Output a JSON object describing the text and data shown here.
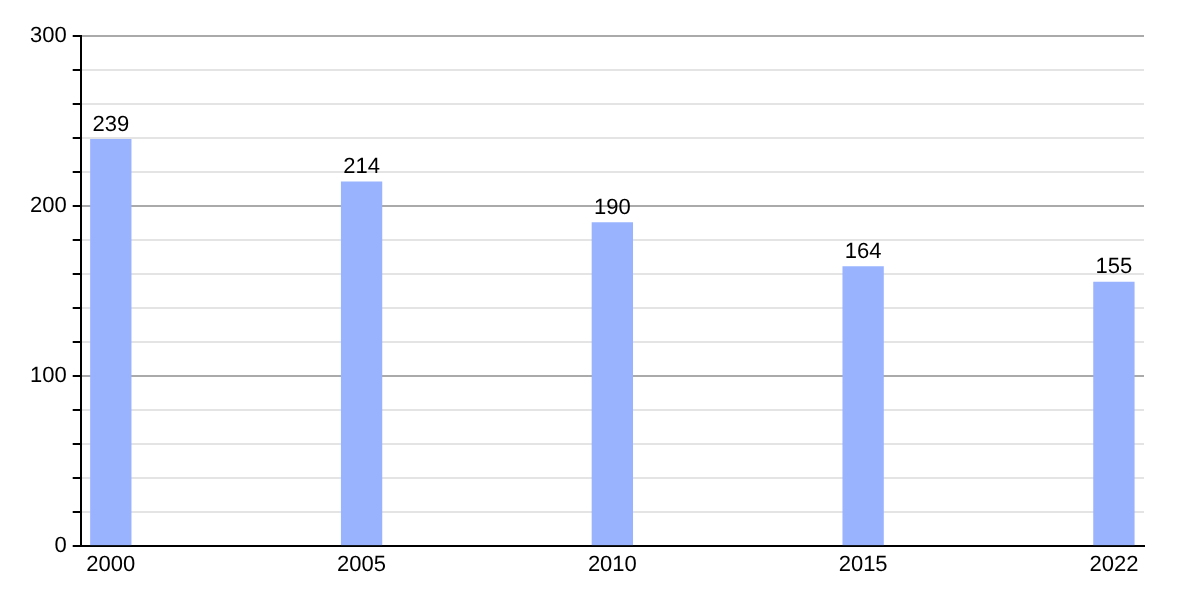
{
  "chart_data": {
    "type": "bar",
    "categories": [
      "2000",
      "2005",
      "2010",
      "2015",
      "2022"
    ],
    "values": [
      239,
      214,
      190,
      164,
      155
    ],
    "color": "#99b3ff",
    "data_labels": true,
    "ylim": [
      0,
      300
    ],
    "yticks": [
      0,
      {
        "value": 20,
        "label": null
      },
      {
        "value": 40,
        "label": null
      },
      {
        "value": 60,
        "label": null
      },
      {
        "value": 80,
        "label": null
      },
      100,
      {
        "value": 120,
        "label": null
      },
      {
        "value": 140,
        "label": null
      },
      {
        "value": 160,
        "label": null
      },
      {
        "value": 180,
        "label": null
      },
      200,
      {
        "value": 220,
        "label": null
      },
      {
        "value": 240,
        "label": null
      },
      {
        "value": 260,
        "label": null
      },
      {
        "value": 280,
        "label": null
      },
      300
    ],
    "grid": "y"
  }
}
